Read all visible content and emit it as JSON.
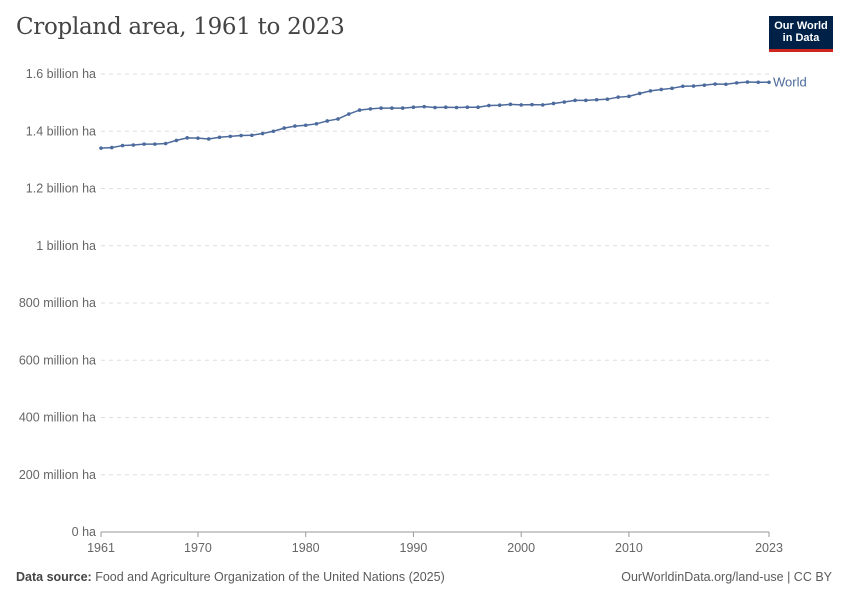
{
  "header": {
    "title": "Cropland area, 1961 to 2023",
    "logo_line1": "Our World",
    "logo_line2": "in Data"
  },
  "footer": {
    "source_label": "Data source:",
    "source_text": "Food and Agriculture Organization of the United Nations (2025)",
    "right": "OurWorldinData.org/land-use | CC BY"
  },
  "chart_data": {
    "type": "line",
    "title": "Cropland area, 1961 to 2023",
    "xlabel": "",
    "ylabel": "",
    "xlim": [
      1961,
      2023
    ],
    "ylim": [
      0,
      1600000000
    ],
    "grid": "horizontal dashed",
    "x_ticks": [
      1961,
      1970,
      1980,
      1990,
      2000,
      2010,
      2023
    ],
    "y_ticks": [
      {
        "v": 0,
        "label": "0 ha"
      },
      {
        "v": 200000000,
        "label": "200 million ha"
      },
      {
        "v": 400000000,
        "label": "400 million ha"
      },
      {
        "v": 600000000,
        "label": "600 million ha"
      },
      {
        "v": 800000000,
        "label": "800 million ha"
      },
      {
        "v": 1000000000,
        "label": "1 billion ha"
      },
      {
        "v": 1200000000,
        "label": "1.2 billion ha"
      },
      {
        "v": 1400000000,
        "label": "1.4 billion ha"
      },
      {
        "v": 1600000000,
        "label": "1.6 billion ha"
      }
    ],
    "series": [
      {
        "name": "World",
        "color": "#4c6a9c",
        "x": [
          1961,
          1962,
          1963,
          1964,
          1965,
          1966,
          1967,
          1968,
          1969,
          1970,
          1971,
          1972,
          1973,
          1974,
          1975,
          1976,
          1977,
          1978,
          1979,
          1980,
          1981,
          1982,
          1983,
          1984,
          1985,
          1986,
          1987,
          1988,
          1989,
          1990,
          1991,
          1992,
          1993,
          1994,
          1995,
          1996,
          1997,
          1998,
          1999,
          2000,
          2001,
          2002,
          2003,
          2004,
          2005,
          2006,
          2007,
          2008,
          2009,
          2010,
          2011,
          2012,
          2013,
          2014,
          2015,
          2016,
          2017,
          2018,
          2019,
          2020,
          2021,
          2022,
          2023
        ],
        "values_billion_ha": [
          1.341,
          1.343,
          1.35,
          1.352,
          1.355,
          1.355,
          1.357,
          1.368,
          1.377,
          1.376,
          1.373,
          1.379,
          1.382,
          1.385,
          1.386,
          1.392,
          1.4,
          1.411,
          1.418,
          1.421,
          1.426,
          1.436,
          1.443,
          1.46,
          1.474,
          1.478,
          1.481,
          1.481,
          1.481,
          1.484,
          1.486,
          1.483,
          1.484,
          1.483,
          1.484,
          1.484,
          1.49,
          1.491,
          1.494,
          1.492,
          1.493,
          1.492,
          1.497,
          1.502,
          1.508,
          1.508,
          1.51,
          1.512,
          1.519,
          1.522,
          1.532,
          1.541,
          1.546,
          1.55,
          1.557,
          1.558,
          1.561,
          1.565,
          1.564,
          1.569,
          1.572,
          1.571,
          1.571
        ]
      }
    ],
    "legend": "right, inline label at line end"
  }
}
